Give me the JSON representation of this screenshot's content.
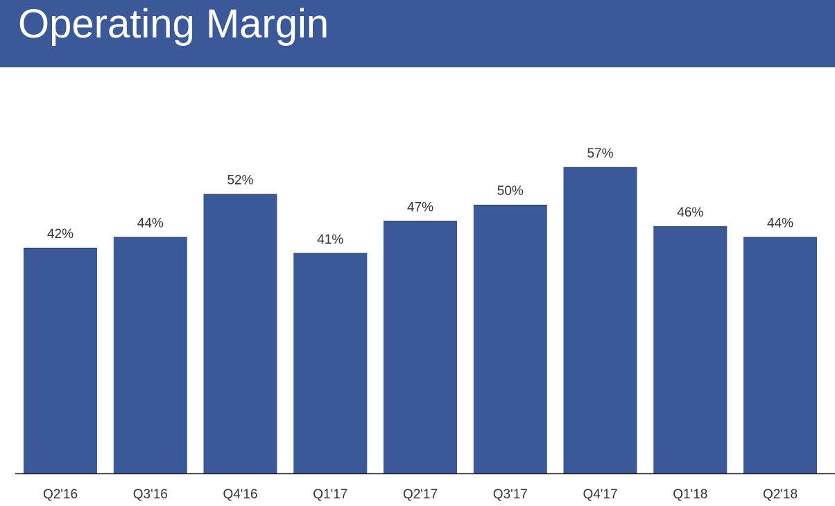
{
  "header": {
    "title": "Operating Margin"
  },
  "colors": {
    "header_bg": "#3b5998",
    "bar": "#3b5998",
    "bar_edge": "#2c4473",
    "axis": "#222222",
    "text": "#333333"
  },
  "chart_data": {
    "type": "bar",
    "title": "Operating Margin",
    "categories": [
      "Q2'16",
      "Q3'16",
      "Q4'16",
      "Q1'17",
      "Q2'17",
      "Q3'17",
      "Q4'17",
      "Q1'18",
      "Q2'18"
    ],
    "values": [
      42,
      44,
      52,
      41,
      47,
      50,
      57,
      46,
      44
    ],
    "data_labels": [
      "42%",
      "44%",
      "52%",
      "41%",
      "47%",
      "50%",
      "57%",
      "46%",
      "44%"
    ],
    "xlabel": "",
    "ylabel": "",
    "ylim": [
      0,
      57
    ],
    "grid": false,
    "legend": "none"
  }
}
